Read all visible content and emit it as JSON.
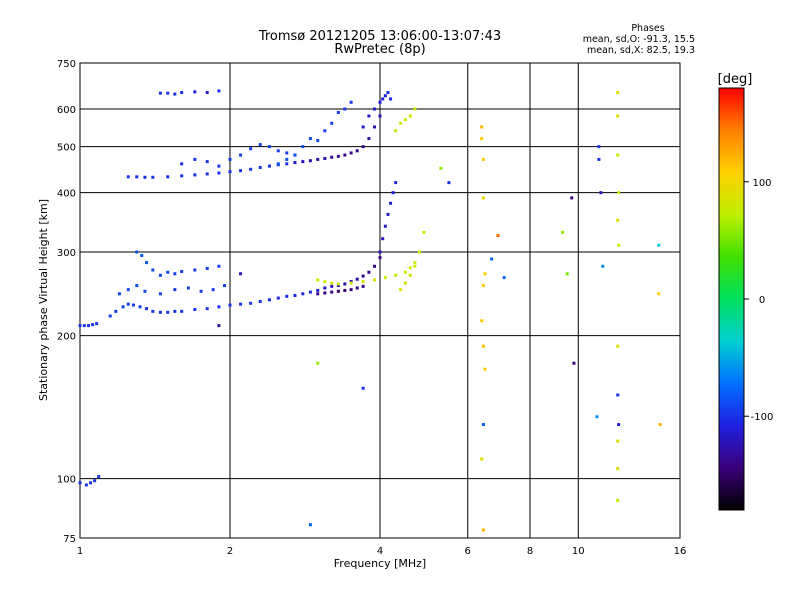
{
  "header": {
    "title": "Tromsø 20121205 13:06:00-13:07:43",
    "subtitle": "RwPretec (8p)"
  },
  "stats": {
    "heading": "Phases",
    "line_o": "mean, sd,O: -91.3, 15.5",
    "line_x": "mean, sd,X: 82.5, 19.3"
  },
  "chart_data": {
    "type": "scatter",
    "xlabel": "Frequency [MHz]",
    "ylabel": "Stationary phase Virtual Height [km]",
    "xscale": "log",
    "yscale": "log",
    "xlim": [
      1,
      16
    ],
    "ylim": [
      75,
      750
    ],
    "xticks": [
      1,
      2,
      4,
      6,
      8,
      10,
      16
    ],
    "yticks": [
      75,
      100,
      200,
      300,
      400,
      500,
      600,
      750
    ],
    "grid": true,
    "colorbar": {
      "label": "[deg]",
      "range": [
        -180,
        180
      ],
      "ticks": [
        100,
        0,
        -100
      ],
      "colormap": [
        "#000000",
        "#3a007a",
        "#2020e0",
        "#0070ff",
        "#00d0d0",
        "#00e060",
        "#40e000",
        "#c0f000",
        "#ffd000",
        "#ff8000",
        "#ff0000"
      ]
    },
    "series": [
      {
        "x": [
          1.0,
          1.03,
          1.05,
          1.07,
          1.09
        ],
        "y": [
          98,
          97,
          98,
          99,
          101
        ],
        "c": [
          -100,
          -100,
          -100,
          -100,
          -100
        ]
      },
      {
        "x": [
          1.0,
          1.02,
          1.04,
          1.06,
          1.08
        ],
        "y": [
          210,
          210,
          210,
          211,
          212
        ],
        "c": [
          -100,
          -100,
          -100,
          -100,
          -100
        ]
      },
      {
        "x": [
          1.15,
          1.18,
          1.22,
          1.25,
          1.28,
          1.32,
          1.36,
          1.4,
          1.45,
          1.5,
          1.55,
          1.6,
          1.7,
          1.8,
          1.9,
          2.0,
          2.1,
          2.2,
          2.3,
          2.4,
          2.5,
          2.6,
          2.7,
          2.8,
          2.9,
          3.0,
          3.1,
          3.2,
          3.3,
          3.4,
          3.5,
          3.6,
          3.7,
          3.8,
          3.9,
          4.0
        ],
        "y": [
          220,
          225,
          230,
          233,
          232,
          230,
          228,
          225,
          224,
          224,
          225,
          225,
          227,
          228,
          230,
          232,
          233,
          234,
          236,
          238,
          240,
          242,
          243,
          245,
          247,
          249,
          252,
          254,
          255,
          257,
          260,
          263,
          267,
          272,
          280,
          292
        ],
        "c": [
          -95,
          -95,
          -95,
          -95,
          -95,
          -95,
          -100,
          -100,
          -100,
          -100,
          -100,
          -100,
          -100,
          -100,
          -100,
          -100,
          -100,
          -100,
          -100,
          -100,
          -105,
          -105,
          -105,
          -105,
          -105,
          -110,
          -120,
          -120,
          -120,
          -125,
          -125,
          -130,
          -135,
          -140,
          -140,
          -140
        ]
      },
      {
        "x": [
          1.3,
          1.33,
          1.36,
          1.4,
          1.45,
          1.5,
          1.55,
          1.6,
          1.7,
          1.8,
          1.9
        ],
        "y": [
          300,
          295,
          285,
          275,
          268,
          272,
          270,
          273,
          275,
          277,
          280
        ],
        "c": [
          -85,
          -85,
          -85,
          -90,
          -90,
          -90,
          -90,
          -95,
          -95,
          -95,
          -95
        ]
      },
      {
        "x": [
          1.2,
          1.25,
          1.3,
          1.35,
          1.45,
          1.55,
          1.65,
          1.75,
          1.85,
          1.95
        ],
        "y": [
          245,
          250,
          255,
          248,
          245,
          250,
          252,
          248,
          250,
          255
        ],
        "c": [
          -90,
          -90,
          -90,
          -90,
          -95,
          -95,
          -95,
          -95,
          -95,
          -95
        ]
      },
      {
        "x": [
          3.0,
          3.1,
          3.2,
          3.3,
          3.4,
          3.5,
          3.6,
          3.7
        ],
        "y": [
          245,
          246,
          247,
          248,
          249,
          250,
          252,
          254
        ],
        "c": [
          -140,
          -140,
          -140,
          -145,
          -145,
          -145,
          -140,
          -140
        ]
      },
      {
        "x": [
          3.0,
          3.1,
          3.2,
          3.3,
          3.5,
          3.7,
          3.9,
          4.1,
          4.3,
          4.5,
          4.6,
          4.7,
          4.8
        ],
        "y": [
          262,
          260,
          258,
          257,
          258,
          260,
          262,
          265,
          268,
          272,
          278,
          285,
          300
        ],
        "c": [
          75,
          80,
          80,
          82,
          85,
          85,
          85,
          80,
          80,
          80,
          78,
          78,
          78
        ]
      },
      {
        "x": [
          4.0,
          4.05,
          4.1,
          4.15,
          4.2,
          4.25,
          4.3
        ],
        "y": [
          300,
          320,
          340,
          360,
          380,
          400,
          420
        ],
        "c": [
          -120,
          -120,
          -115,
          -115,
          -110,
          -110,
          -105
        ]
      },
      {
        "x": [
          4.4,
          4.5,
          4.6,
          4.7,
          4.8,
          4.9
        ],
        "y": [
          250,
          258,
          268,
          280,
          300,
          330
        ],
        "c": [
          85,
          85,
          82,
          82,
          80,
          80
        ]
      },
      {
        "x": [
          1.25,
          1.3,
          1.35,
          1.4,
          1.5,
          1.6,
          1.7,
          1.8,
          1.9,
          2.0,
          2.1,
          2.2,
          2.3,
          2.4,
          2.5,
          2.6,
          2.7,
          2.8,
          2.9,
          3.0,
          3.1,
          3.2,
          3.3,
          3.4,
          3.5,
          3.6,
          3.7,
          3.8,
          3.9,
          4.0
        ],
        "y": [
          432,
          432,
          431,
          431,
          432,
          434,
          436,
          438,
          440,
          443,
          445,
          448,
          452,
          455,
          458,
          460,
          463,
          465,
          467,
          470,
          472,
          475,
          477,
          480,
          485,
          490,
          500,
          520,
          550,
          580
        ],
        "c": [
          -100,
          -100,
          -100,
          -100,
          -100,
          -100,
          -100,
          -100,
          -100,
          -100,
          -100,
          -100,
          -100,
          -100,
          -100,
          -100,
          -110,
          -120,
          -125,
          -130,
          -130,
          -135,
          -135,
          -140,
          -140,
          -140,
          -135,
          -130,
          -125,
          -120
        ]
      },
      {
        "x": [
          1.6,
          1.7,
          1.8,
          1.9,
          2.0,
          2.1,
          2.2,
          2.3,
          2.4,
          2.5,
          2.6,
          2.7
        ],
        "y": [
          460,
          470,
          465,
          455,
          470,
          480,
          495,
          505,
          500,
          490,
          485,
          480
        ],
        "c": [
          -100,
          -100,
          -100,
          -100,
          -95,
          -95,
          -95,
          -95,
          -95,
          -95,
          -95,
          -95
        ]
      },
      {
        "x": [
          2.5,
          2.6,
          2.7,
          2.8,
          2.9,
          3.0,
          3.1,
          3.2,
          3.3,
          3.4,
          3.5
        ],
        "y": [
          460,
          470,
          480,
          500,
          520,
          515,
          540,
          560,
          590,
          600,
          620
        ],
        "c": [
          -85,
          -85,
          -85,
          -90,
          -90,
          -90,
          -95,
          -95,
          -95,
          -100,
          -100
        ]
      },
      {
        "x": [
          3.7,
          3.8,
          3.9,
          4.0,
          4.05,
          4.1,
          4.15,
          4.2
        ],
        "y": [
          550,
          580,
          600,
          620,
          630,
          640,
          650,
          630
        ],
        "c": [
          -115,
          -115,
          -115,
          -110,
          -110,
          -110,
          -105,
          -105
        ]
      },
      {
        "x": [
          4.3,
          4.4,
          4.5,
          4.6,
          4.7
        ],
        "y": [
          540,
          560,
          570,
          580,
          600
        ],
        "c": [
          80,
          82,
          82,
          80,
          80
        ]
      },
      {
        "x": [
          1.45,
          1.5,
          1.55,
          1.6,
          1.7,
          1.8,
          1.9
        ],
        "y": [
          648,
          648,
          645,
          650,
          652,
          650,
          655
        ],
        "c": [
          -100,
          -100,
          -100,
          -100,
          -110,
          -115,
          -100
        ]
      },
      {
        "x": [
          6.4,
          6.4,
          6.45,
          6.45,
          6.5,
          6.45,
          6.4,
          6.45,
          6.5,
          6.45,
          6.4,
          6.45
        ],
        "y": [
          550,
          520,
          470,
          390,
          270,
          255,
          215,
          190,
          170,
          130,
          110,
          78
        ],
        "c": [
          120,
          110,
          110,
          100,
          105,
          110,
          110,
          115,
          110,
          -80,
          90,
          120
        ]
      },
      {
        "x": [
          12.0,
          12.0,
          12.0,
          12.05,
          12.0,
          12.05,
          12.0,
          12.0,
          12.05,
          12.0,
          12.0,
          12.0
        ],
        "y": [
          650,
          580,
          480,
          400,
          350,
          310,
          190,
          150,
          130,
          120,
          105,
          90
        ],
        "c": [
          85,
          85,
          80,
          80,
          85,
          80,
          85,
          -100,
          -110,
          85,
          85,
          80
        ]
      },
      {
        "x": [
          11.0,
          11.0,
          11.1,
          11.2,
          10.9
        ],
        "y": [
          500,
          470,
          400,
          280,
          135
        ],
        "c": [
          -100,
          -100,
          -120,
          -60,
          -60
        ]
      },
      {
        "x": [
          9.3,
          9.5,
          9.7,
          9.8,
          14.5,
          14.5,
          14.6
        ],
        "y": [
          330,
          270,
          390,
          175,
          310,
          245,
          130
        ],
        "c": [
          60,
          50,
          -140,
          -150,
          -40,
          110,
          120
        ]
      },
      {
        "x": [
          5.3,
          5.5,
          6.9,
          7.1,
          6.7,
          3.7,
          2.9,
          3.0,
          1.9,
          2.1
        ],
        "y": [
          450,
          420,
          325,
          265,
          290,
          155,
          80,
          175,
          210,
          270
        ],
        "c": [
          60,
          -100,
          150,
          -80,
          -80,
          -100,
          -80,
          60,
          -130,
          -120
        ]
      }
    ]
  }
}
